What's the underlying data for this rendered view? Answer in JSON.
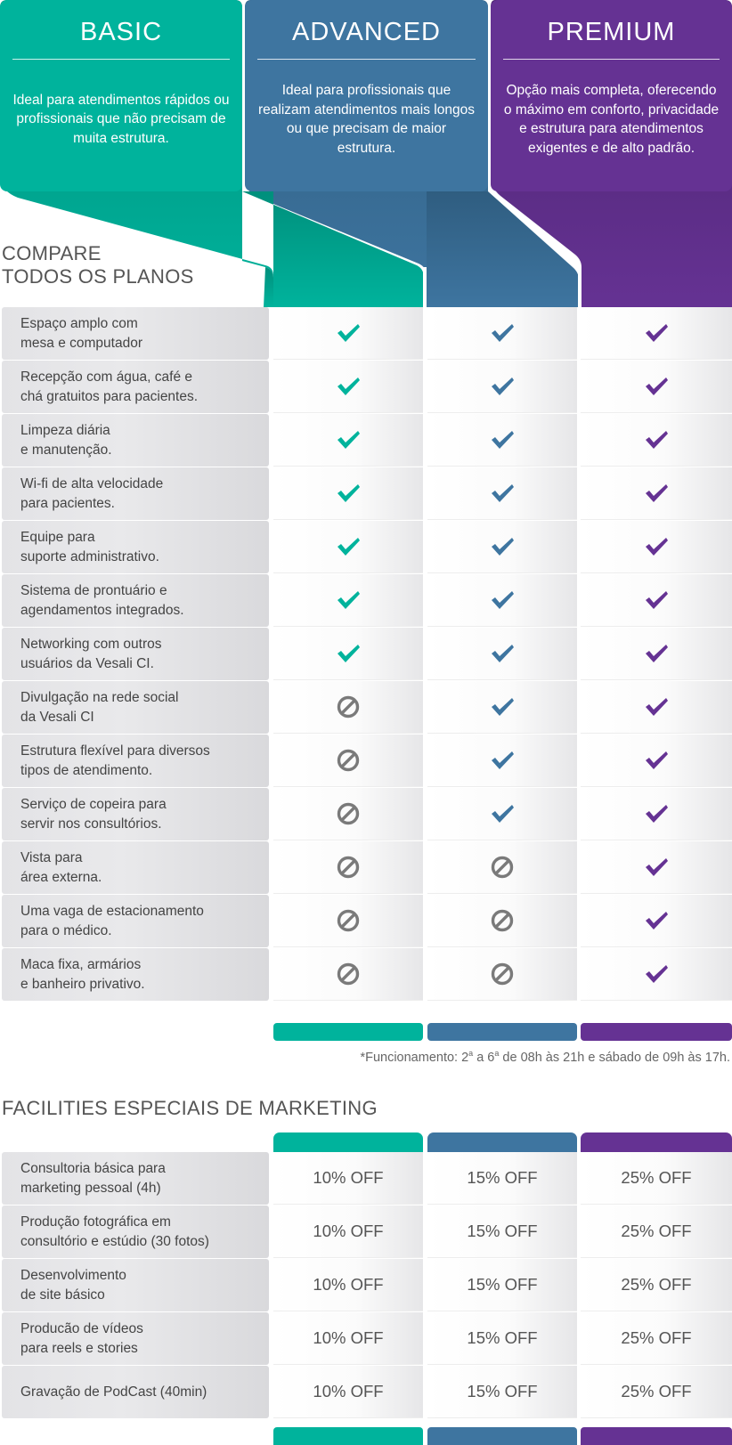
{
  "colors": {
    "basic": "#00b39c",
    "advanced": "#3e75a0",
    "premium": "#653293",
    "unavailable": "#7a7a7a"
  },
  "plans": [
    {
      "id": "basic",
      "title": "BASIC",
      "description": "Ideal para atendimentos rápidos ou profissionais que não precisam de muita estrutura."
    },
    {
      "id": "advanced",
      "title": "ADVANCED",
      "description": "Ideal para profissionais que realizam atendimentos mais longos ou que precisam de maior estrutura."
    },
    {
      "id": "premium",
      "title": "PREMIUM",
      "description": "Opção mais completa, oferecendo o máximo em conforto, privacidade e estrutura para atendimentos exigentes e de alto padrão."
    }
  ],
  "compare": {
    "title_line1": "COMPARE",
    "title_line2": "TODOS OS PLANOS",
    "icon_names": {
      "yes": "check-icon",
      "no": "prohibited-icon"
    },
    "features": [
      {
        "label": "Espaço amplo com\nmesa e computador",
        "basic": true,
        "advanced": true,
        "premium": true
      },
      {
        "label": "Recepção com água, café e\nchá gratuitos para pacientes.",
        "basic": true,
        "advanced": true,
        "premium": true
      },
      {
        "label": "Limpeza diária\ne manutenção.",
        "basic": true,
        "advanced": true,
        "premium": true
      },
      {
        "label": "Wi-fi de alta velocidade\npara pacientes.",
        "basic": true,
        "advanced": true,
        "premium": true
      },
      {
        "label": "Equipe para\nsuporte administrativo.",
        "basic": true,
        "advanced": true,
        "premium": true
      },
      {
        "label": "Sistema de prontuário e\nagendamentos integrados.",
        "basic": true,
        "advanced": true,
        "premium": true
      },
      {
        "label": "Networking com outros\nusuários da Vesali CI.",
        "basic": true,
        "advanced": true,
        "premium": true
      },
      {
        "label": "Divulgação na rede social\nda Vesali CI",
        "basic": false,
        "advanced": true,
        "premium": true
      },
      {
        "label": "Estrutura flexível para diversos\ntipos de atendimento.",
        "basic": false,
        "advanced": true,
        "premium": true
      },
      {
        "label": "Serviço de copeira para\nservir nos consultórios.",
        "basic": false,
        "advanced": true,
        "premium": true
      },
      {
        "label": "Vista para\nárea externa.",
        "basic": false,
        "advanced": false,
        "premium": true
      },
      {
        "label": "Uma vaga de estacionamento\npara o médico.",
        "basic": false,
        "advanced": false,
        "premium": true
      },
      {
        "label": "Maca fixa, armários\ne banheiro privativo.",
        "basic": false,
        "advanced": false,
        "premium": true
      }
    ]
  },
  "footnote": {
    "prefix": "*Funcionamento: 2",
    "sup1": "a",
    "middle": " a 6",
    "sup2": "a",
    "suffix": " de 08h às 21h e sábado de 09h às 17h."
  },
  "marketing": {
    "title": "FACILITIES ESPECIAIS DE MARKETING",
    "rows": [
      {
        "label": "Consultoria básica para\nmarketing pessoal (4h)",
        "basic": "10% OFF",
        "advanced": "15% OFF",
        "premium": "25% OFF"
      },
      {
        "label": "Produção fotográfica em\nconsultório e estúdio (30 fotos)",
        "basic": "10% OFF",
        "advanced": "15% OFF",
        "premium": "25% OFF"
      },
      {
        "label": "Desenvolvimento\nde site básico",
        "basic": "10% OFF",
        "advanced": "15% OFF",
        "premium": "25% OFF"
      },
      {
        "label": "Producão de vídeos\npara reels e stories",
        "basic": "10% OFF",
        "advanced": "15% OFF",
        "premium": "25% OFF"
      },
      {
        "label": "Gravação de PodCast (40min)",
        "basic": "10% OFF",
        "advanced": "15% OFF",
        "premium": "25% OFF"
      }
    ]
  }
}
